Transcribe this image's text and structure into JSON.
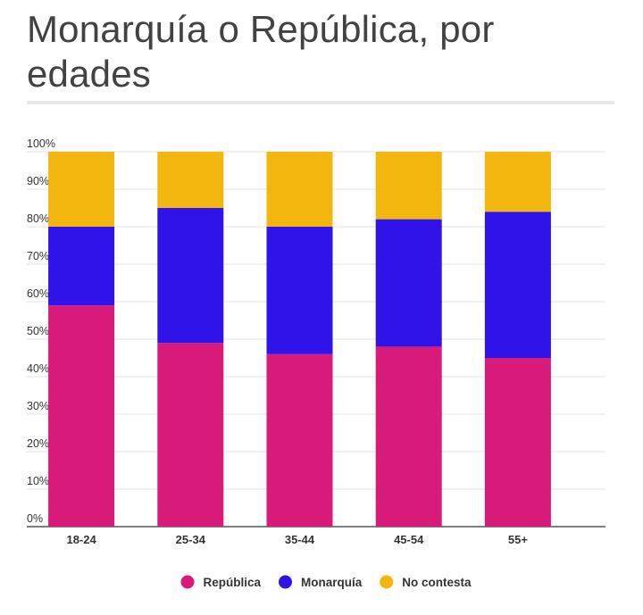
{
  "title": "Monarquía o República, por edades",
  "chart_data": {
    "type": "bar",
    "stacked": true,
    "normalized": true,
    "title": "Monarquía o República, por edades",
    "xlabel": "",
    "ylabel": "",
    "ylim": [
      0,
      100
    ],
    "y_ticks": [
      "0%",
      "10%",
      "20%",
      "30%",
      "40%",
      "50%",
      "60%",
      "70%",
      "80%",
      "90%",
      "100%"
    ],
    "grid": true,
    "legend_position": "bottom",
    "categories": [
      "18-24",
      "25-34",
      "35-44",
      "45-54",
      "55+"
    ],
    "series": [
      {
        "name": "República",
        "color": "#d81b7a",
        "values": [
          59,
          49,
          46,
          48,
          45
        ]
      },
      {
        "name": "Monarquía",
        "color": "#2f13e8",
        "values": [
          21,
          36,
          34,
          34,
          39
        ]
      },
      {
        "name": "No contesta",
        "color": "#f2b60f",
        "values": [
          20,
          15,
          20,
          18,
          16
        ]
      }
    ]
  }
}
